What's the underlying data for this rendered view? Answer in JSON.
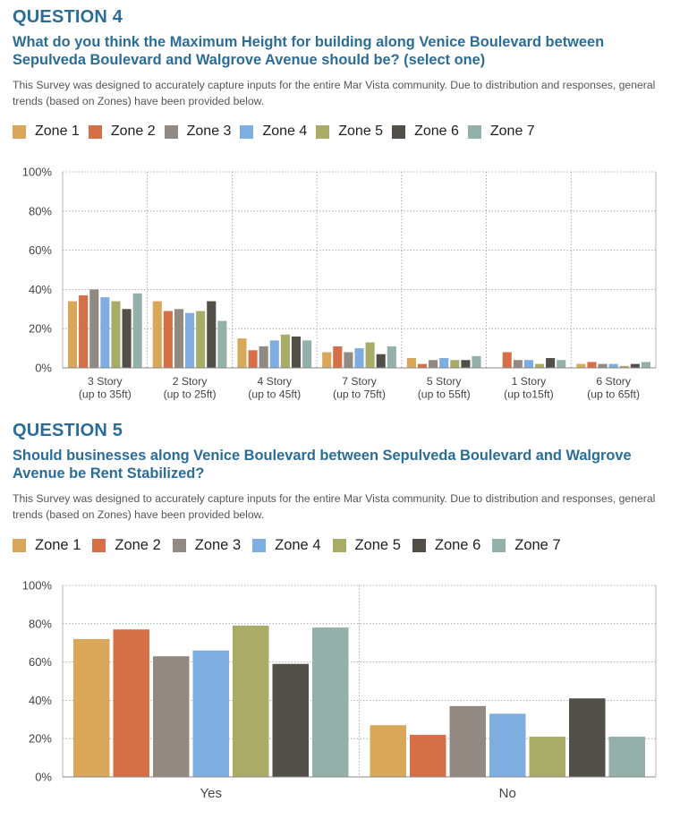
{
  "zones": [
    "Zone 1",
    "Zone 2",
    "Zone 3",
    "Zone 4",
    "Zone 5",
    "Zone 6",
    "Zone 7"
  ],
  "colors": [
    "#d9a75a",
    "#d56f47",
    "#928a82",
    "#7eade0",
    "#a8ac66",
    "#524e48",
    "#93b0ab"
  ],
  "q4": {
    "heading": "QUESTION 4",
    "title": "What do you think the Maximum Height for building along Venice Boulevard between Sepulveda Boulevard and Walgrove Avenue should be? (select one)",
    "description": "This Survey was designed to accurately capture inputs for the entire Mar Vista community. Due to distribution and responses, general trends (based on Zones) have been provided below."
  },
  "q5": {
    "heading": "QUESTION 5",
    "title": "Should businesses along Venice Boulevard between Sepulveda Boulevard and Walgrove Avenue be Rent Stabilized?",
    "description": "This Survey was designed to accurately capture inputs for the entire Mar Vista community. Due to distribution and responses, general trends (based on Zones) have been provided below."
  },
  "chart_data": [
    {
      "type": "bar",
      "ylim": [
        0,
        100
      ],
      "yticks": [
        "0%",
        "20%",
        "40%",
        "60%",
        "80%",
        "100%"
      ],
      "grid": true,
      "legend": "top",
      "categories": [
        [
          "3 Story",
          "(up to 35ft)"
        ],
        [
          "2 Story",
          "(up to 25ft)"
        ],
        [
          "4 Story",
          "(up to 45ft)"
        ],
        [
          "7 Story",
          "(up to 75ft)"
        ],
        [
          "5 Story",
          "(up to 55ft)"
        ],
        [
          "1 Story",
          "(up to15ft)"
        ],
        [
          "6 Story",
          "(up to 65ft)"
        ]
      ],
      "series": [
        {
          "name": "Zone 1",
          "values": [
            34,
            34,
            15,
            8,
            5,
            0,
            2
          ]
        },
        {
          "name": "Zone 2",
          "values": [
            37,
            29,
            9,
            11,
            2,
            8,
            3
          ]
        },
        {
          "name": "Zone 3",
          "values": [
            40,
            30,
            11,
            8,
            4,
            4,
            2
          ]
        },
        {
          "name": "Zone 4",
          "values": [
            36,
            28,
            14,
            10,
            5,
            4,
            2
          ]
        },
        {
          "name": "Zone 5",
          "values": [
            34,
            29,
            17,
            13,
            4,
            2,
            1
          ]
        },
        {
          "name": "Zone 6",
          "values": [
            30,
            34,
            16,
            7,
            4,
            5,
            2
          ]
        },
        {
          "name": "Zone 7",
          "values": [
            38,
            24,
            14,
            11,
            6,
            4,
            3
          ]
        }
      ]
    },
    {
      "type": "bar",
      "ylim": [
        0,
        100
      ],
      "yticks": [
        "0%",
        "20%",
        "40%",
        "60%",
        "80%",
        "100%"
      ],
      "grid": true,
      "legend": "top",
      "categories": [
        [
          "Yes"
        ],
        [
          "No"
        ]
      ],
      "series": [
        {
          "name": "Zone 1",
          "values": [
            72,
            27
          ]
        },
        {
          "name": "Zone 2",
          "values": [
            77,
            22
          ]
        },
        {
          "name": "Zone 3",
          "values": [
            63,
            37
          ]
        },
        {
          "name": "Zone 4",
          "values": [
            66,
            33
          ]
        },
        {
          "name": "Zone 5",
          "values": [
            79,
            21
          ]
        },
        {
          "name": "Zone 6",
          "values": [
            59,
            41
          ]
        },
        {
          "name": "Zone 7",
          "values": [
            78,
            21
          ]
        }
      ]
    }
  ]
}
